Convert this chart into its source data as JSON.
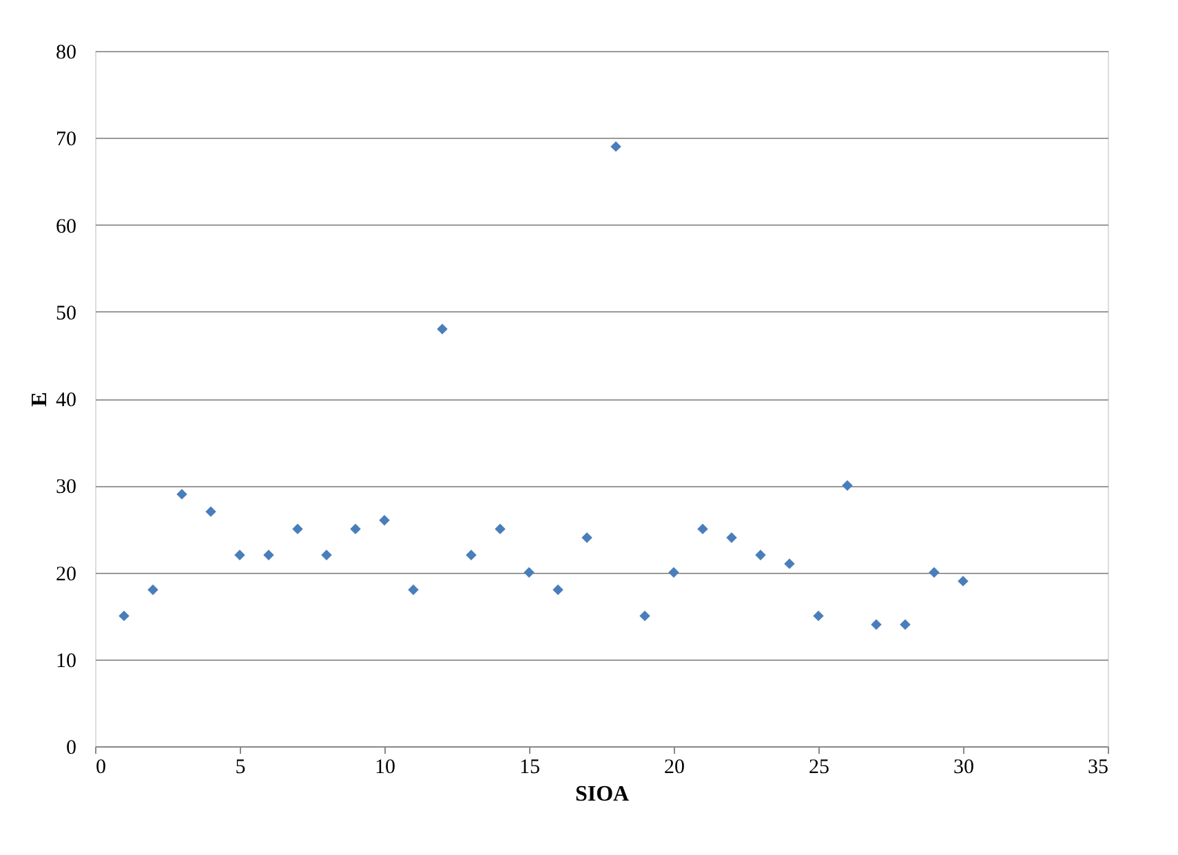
{
  "chart_data": {
    "type": "scatter",
    "xlabel": "SIOA",
    "ylabel": "E",
    "x": [
      1,
      2,
      3,
      4,
      5,
      6,
      7,
      8,
      9,
      10,
      11,
      12,
      13,
      14,
      15,
      16,
      17,
      18,
      19,
      20,
      21,
      22,
      23,
      24,
      25,
      26,
      27,
      28,
      29,
      30
    ],
    "series": [
      {
        "color": "#4a7ebb",
        "values": [
          15,
          18,
          29,
          27,
          22,
          22,
          25,
          22,
          25,
          26,
          18,
          48,
          22,
          25,
          20,
          18,
          24,
          69,
          15,
          20,
          25,
          24,
          22,
          21,
          15,
          30,
          14,
          14,
          20,
          19
        ]
      }
    ],
    "xlim": [
      0,
      35
    ],
    "xticks": [
      0,
      5,
      10,
      15,
      20,
      25,
      30,
      35
    ],
    "ylim": [
      0,
      80
    ],
    "yticks": [
      0,
      10,
      20,
      30,
      40,
      50,
      60,
      70,
      80
    ],
    "grid": "y",
    "marker": "diamond"
  }
}
